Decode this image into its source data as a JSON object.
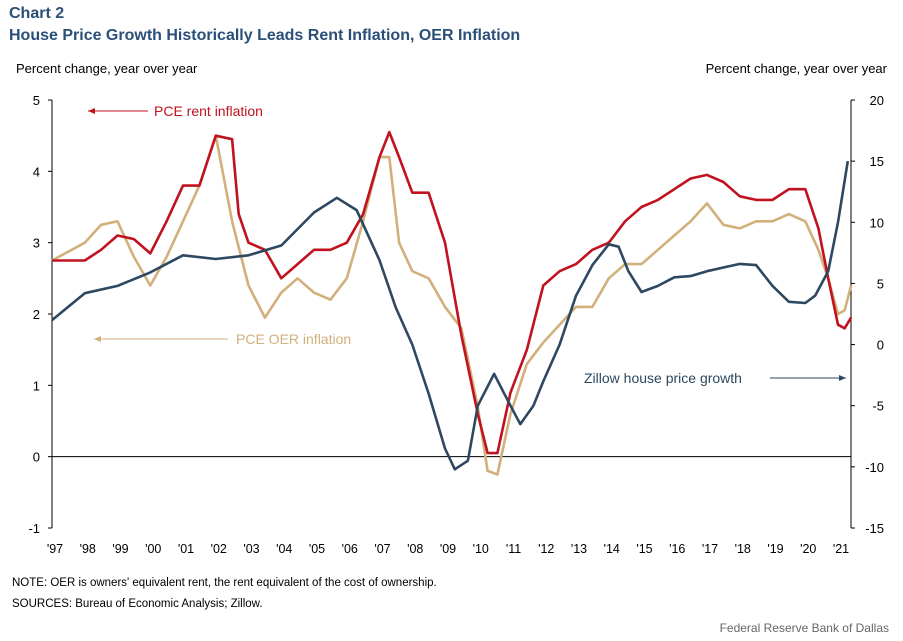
{
  "header": {
    "chart_number": "Chart 2",
    "title": "House Price Growth Historically Leads Rent Inflation, OER Inflation",
    "left_axis_label": "Percent change,  year over year",
    "right_axis_label": "Percent change,  year over year"
  },
  "footer": {
    "note": "NOTE: OER is owners' equivalent rent, the rent equivalent of the cost of ownership.",
    "sources": "SOURCES: Bureau of Economic Analysis; Zillow.",
    "credit": "Federal Reserve  Bank of Dallas"
  },
  "colors": {
    "rent": "#c0121f",
    "oer": "#d2b07c",
    "zillow": "#2d4860"
  },
  "chart_data": {
    "type": "line",
    "title": "House Price Growth Historically Leads Rent Inflation, OER Inflation",
    "xlim": [
      1997,
      2021.45
    ],
    "x_tick_labels": [
      "'97",
      "'98",
      "'99",
      "'00",
      "'01",
      "'02",
      "'03",
      "'04",
      "'05",
      "'06",
      "'07",
      "'08",
      "'09",
      "'10",
      "'11",
      "'12",
      "'13",
      "'14",
      "'15",
      "'16",
      "'17",
      "'18",
      "'19",
      "'20",
      "'21"
    ],
    "left_axis": {
      "ylim": [
        -1,
        5
      ],
      "ticks": [
        "5",
        "4",
        "3",
        "2",
        "1",
        "0",
        "-1"
      ]
    },
    "right_axis": {
      "ylim": [
        -15,
        20
      ],
      "ticks": [
        "20",
        "15",
        "10",
        "5",
        "0",
        "-5",
        "-10",
        "-15"
      ]
    },
    "series": [
      {
        "name": "PCE rent inflation",
        "axis": "left",
        "color_key": "rent",
        "x": [
          1997,
          1998,
          1998.5,
          1999,
          1999.5,
          2000,
          2000.5,
          2001,
          2001.5,
          2002,
          2002.5,
          2002.7,
          2003,
          2003.5,
          2004,
          2004.5,
          2005,
          2005.5,
          2006,
          2006.5,
          2007,
          2007.3,
          2007.6,
          2008,
          2008.5,
          2009,
          2009.5,
          2010,
          2010.3,
          2010.6,
          2011,
          2011.5,
          2012,
          2012.5,
          2013,
          2013.5,
          2014,
          2014.5,
          2015,
          2015.5,
          2016,
          2016.5,
          2017,
          2017.5,
          2018,
          2018.5,
          2019,
          2019.5,
          2020,
          2020.4,
          2020.7,
          2021,
          2021.2,
          2021.4
        ],
        "y": [
          2.75,
          2.75,
          2.9,
          3.1,
          3.05,
          2.85,
          3.3,
          3.8,
          3.8,
          4.5,
          4.45,
          3.4,
          3.0,
          2.9,
          2.5,
          2.7,
          2.9,
          2.9,
          3.0,
          3.4,
          4.2,
          4.55,
          4.2,
          3.7,
          3.7,
          3.0,
          1.7,
          0.6,
          0.05,
          0.05,
          0.9,
          1.5,
          2.4,
          2.6,
          2.7,
          2.9,
          3.0,
          3.3,
          3.5,
          3.6,
          3.75,
          3.9,
          3.95,
          3.85,
          3.65,
          3.6,
          3.6,
          3.75,
          3.75,
          3.2,
          2.5,
          1.85,
          1.8,
          1.95
        ]
      },
      {
        "name": "PCE OER inflation",
        "axis": "left",
        "color_key": "oer",
        "x": [
          1997,
          1998,
          1998.5,
          1999,
          1999.5,
          2000,
          2000.5,
          2001,
          2001.5,
          2002,
          2002.5,
          2003,
          2003.5,
          2004,
          2004.5,
          2005,
          2005.5,
          2006,
          2006.5,
          2007,
          2007.3,
          2007.6,
          2008,
          2008.5,
          2009,
          2009.5,
          2010,
          2010.3,
          2010.6,
          2011,
          2011.5,
          2012,
          2012.5,
          2013,
          2013.5,
          2014,
          2014.5,
          2015,
          2015.5,
          2016,
          2016.5,
          2017,
          2017.5,
          2018,
          2018.5,
          2019,
          2019.5,
          2020,
          2020.4,
          2020.7,
          2021,
          2021.2,
          2021.4
        ],
        "y": [
          2.75,
          3.0,
          3.25,
          3.3,
          2.8,
          2.4,
          2.8,
          3.3,
          3.8,
          4.5,
          3.3,
          2.4,
          1.95,
          2.3,
          2.5,
          2.3,
          2.2,
          2.5,
          3.3,
          4.2,
          4.2,
          3.0,
          2.6,
          2.5,
          2.1,
          1.8,
          0.7,
          -0.2,
          -0.25,
          0.6,
          1.3,
          1.6,
          1.85,
          2.1,
          2.1,
          2.5,
          2.7,
          2.7,
          2.9,
          3.1,
          3.3,
          3.55,
          3.25,
          3.2,
          3.3,
          3.3,
          3.4,
          3.3,
          2.9,
          2.5,
          2.0,
          2.05,
          2.4
        ]
      },
      {
        "name": "Zillow house price growth",
        "axis": "right",
        "color_key": "zillow",
        "x": [
          1997,
          1998,
          1999,
          2000,
          2001,
          2002,
          2003,
          2004,
          2005,
          2005.7,
          2006.3,
          2007,
          2007.5,
          2008,
          2008.5,
          2009,
          2009.3,
          2009.7,
          2010,
          2010.5,
          2011,
          2011.3,
          2011.7,
          2012,
          2012.5,
          2013,
          2013.5,
          2014,
          2014.3,
          2014.6,
          2015,
          2015.5,
          2016,
          2016.5,
          2017,
          2017.5,
          2018,
          2018.5,
          2019,
          2019.5,
          2020,
          2020.3,
          2020.7,
          2021,
          2021.3
        ],
        "y": [
          2.0,
          4.2,
          4.8,
          5.9,
          7.3,
          7.0,
          7.3,
          8.1,
          10.8,
          12.0,
          11.0,
          6.9,
          3.0,
          0,
          -4,
          -8.5,
          -10.2,
          -9.5,
          -5,
          -2.4,
          -5,
          -6.5,
          -5,
          -3,
          0,
          4,
          6.5,
          8.2,
          8,
          6,
          4.3,
          4.8,
          5.5,
          5.6,
          6,
          6.3,
          6.6,
          6.5,
          4.8,
          3.5,
          3.4,
          4,
          6,
          10,
          15
        ]
      }
    ],
    "annotations": [
      {
        "text": "PCE rent inflation",
        "arrow": "left",
        "color_key": "rent"
      },
      {
        "text": "PCE OER inflation",
        "arrow": "left",
        "color_key": "oer"
      },
      {
        "text": "Zillow house price growth",
        "arrow": "right",
        "color_key": "zillow"
      }
    ],
    "grid": false,
    "legend": "inline annotations"
  }
}
